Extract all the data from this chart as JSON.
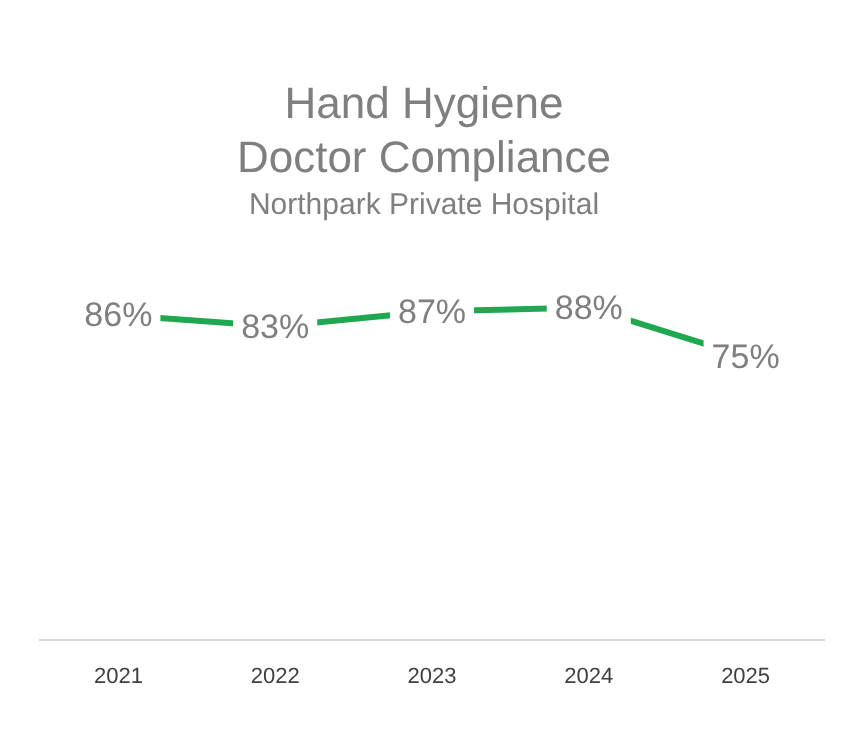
{
  "chart_data": {
    "type": "line",
    "title": "Hand Hygiene Doctor Compliance",
    "subtitle": "Northpark Private Hospital",
    "relative": false,
    "categories": [
      "2021",
      "2022",
      "2023",
      "2024",
      "2025"
    ],
    "series": [
      {
        "color": "#1fa84f",
        "values": [
          86,
          83,
          87,
          88,
          75
        ],
        "value_labels": [
          "86%",
          "83%",
          "87%",
          "88%",
          "75%"
        ]
      }
    ],
    "grid": false,
    "legend": false
  }
}
